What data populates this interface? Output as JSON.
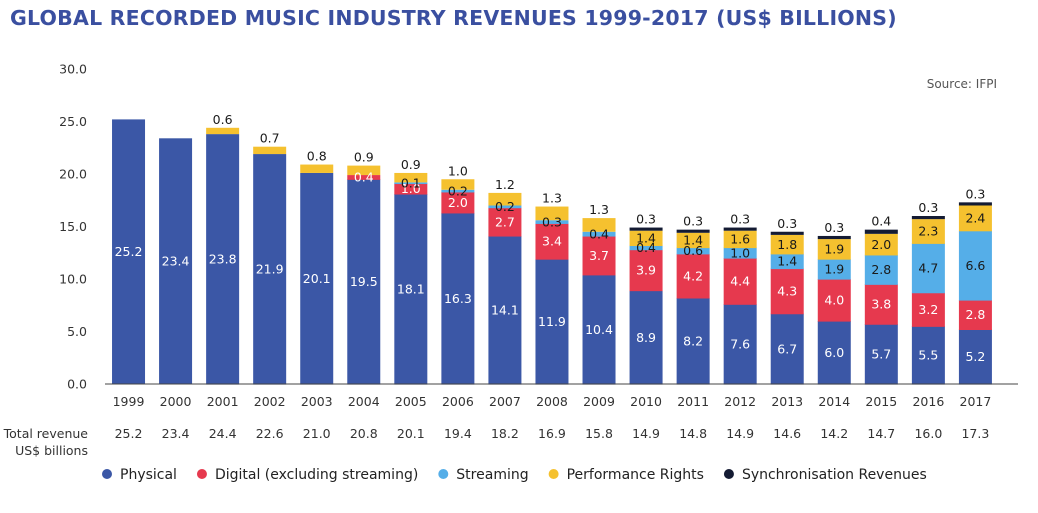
{
  "chart_data": {
    "type": "bar",
    "stacked": true,
    "title": "GLOBAL RECORDED MUSIC INDUSTRY REVENUES 1999-2017 (US$ BILLIONS)",
    "source": "Source: IFPI",
    "ylim": [
      0,
      30
    ],
    "yticks": [
      "0.0",
      "5.0",
      "10.0",
      "15.0",
      "20.0",
      "25.0",
      "30.0"
    ],
    "categories": [
      "1999",
      "2000",
      "2001",
      "2002",
      "2003",
      "2004",
      "2005",
      "2006",
      "2007",
      "2008",
      "2009",
      "2010",
      "2011",
      "2012",
      "2013",
      "2014",
      "2015",
      "2016",
      "2017"
    ],
    "series": [
      {
        "name": "Physical",
        "color": "#3b57a6",
        "label_color": "#ffffff",
        "values": [
          25.2,
          23.4,
          23.8,
          21.9,
          20.1,
          19.5,
          18.1,
          16.3,
          14.1,
          11.9,
          10.4,
          8.9,
          8.2,
          7.6,
          6.7,
          6.0,
          5.7,
          5.5,
          5.2
        ],
        "labels": [
          "25.2",
          "23.4",
          "23.8",
          "21.9",
          "20.1",
          "19.5",
          "18.1",
          "16.3",
          "14.1",
          "11.9",
          "10.4",
          "8.9",
          "8.2",
          "7.6",
          "6.7",
          "6.0",
          "5.7",
          "5.5",
          "5.2"
        ]
      },
      {
        "name": "Digital (excluding streaming)",
        "color": "#e6394e",
        "label_color": "#ffffff",
        "values": [
          0,
          0,
          0,
          0,
          0,
          0.4,
          1.0,
          2.0,
          2.7,
          3.4,
          3.7,
          3.9,
          4.2,
          4.4,
          4.3,
          4.0,
          3.8,
          3.2,
          2.8
        ],
        "labels": [
          "",
          "",
          "",
          "",
          "",
          "0.4",
          "1.0",
          "2.0",
          "2.7",
          "3.4",
          "3.7",
          "3.9",
          "4.2",
          "4.4",
          "4.3",
          "4.0",
          "3.8",
          "3.2",
          "2.8"
        ]
      },
      {
        "name": "Streaming",
        "color": "#55aee8",
        "label_color": "#1a1a1a",
        "values": [
          0,
          0,
          0,
          0,
          0,
          0,
          0.1,
          0.2,
          0.2,
          0.3,
          0.4,
          0.4,
          0.6,
          1.0,
          1.4,
          1.9,
          2.8,
          4.7,
          6.6
        ],
        "labels": [
          "",
          "",
          "",
          "",
          "",
          "",
          "0.1",
          "0.2",
          "0.2",
          "0.3",
          "0.4",
          "0.4",
          "0.6",
          "1.0",
          "1.4",
          "1.9",
          "2.8",
          "4.7",
          "6.6"
        ]
      },
      {
        "name": "Performance Rights",
        "color": "#f5c12f",
        "label_color": "#1a1a1a",
        "values": [
          0,
          0,
          0.6,
          0.7,
          0.8,
          0.9,
          0.9,
          1.0,
          1.2,
          1.3,
          1.3,
          1.4,
          1.4,
          1.6,
          1.8,
          1.9,
          2.0,
          2.3,
          2.4
        ],
        "labels": [
          "",
          "",
          "0.6",
          "0.7",
          "0.8",
          "0.9",
          "0.9",
          "1.0",
          "1.2",
          "1.3",
          "1.3",
          "1.4",
          "1.4",
          "1.6",
          "1.8",
          "1.9",
          "2.0",
          "2.3",
          "2.4"
        ]
      },
      {
        "name": "Synchronisation Revenues",
        "color": "#141b33",
        "label_color": "#1a1a1a",
        "values": [
          0,
          0,
          0,
          0,
          0,
          0,
          0,
          0,
          0,
          0,
          0,
          0.3,
          0.3,
          0.3,
          0.3,
          0.3,
          0.4,
          0.3,
          0.3
        ],
        "labels": [
          "",
          "",
          "",
          "",
          "",
          "",
          "",
          "",
          "",
          "",
          "",
          "0.3",
          "0.3",
          "0.3",
          "0.3",
          "0.3",
          "0.4",
          "0.3",
          "0.3"
        ]
      }
    ],
    "totals": {
      "label_line1": "Total revenue",
      "label_line2": "US$ billions",
      "values": [
        "25.2",
        "23.4",
        "24.4",
        "22.6",
        "21.0",
        "20.8",
        "20.1",
        "19.4",
        "18.2",
        "16.9",
        "15.8",
        "14.9",
        "14.8",
        "14.9",
        "14.6",
        "14.2",
        "14.7",
        "16.0",
        "17.3"
      ]
    },
    "grid": false,
    "legend_position": "bottom"
  }
}
